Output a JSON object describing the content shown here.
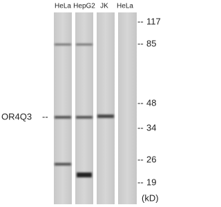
{
  "lanes": [
    "HeLa",
    "HepG2",
    "JK",
    "HeLa"
  ],
  "protein": {
    "label": "OR4Q3",
    "dash": "--"
  },
  "markers": [
    {
      "dash": "--",
      "label": "117"
    },
    {
      "dash": "--",
      "label": "85"
    },
    {
      "dash": "--",
      "label": "48"
    },
    {
      "dash": "--",
      "label": "34"
    },
    {
      "dash": "--",
      "label": "26"
    },
    {
      "dash": "--",
      "label": "19"
    }
  ],
  "unit": "(kD)"
}
